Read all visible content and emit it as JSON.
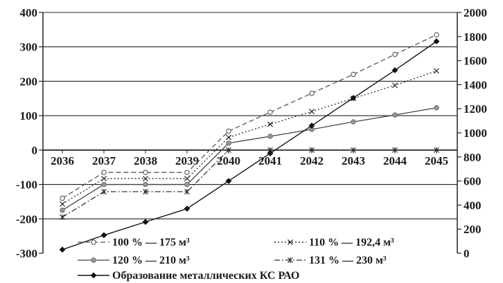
{
  "chart_data": {
    "type": "line",
    "categories": [
      "2036",
      "2037",
      "2038",
      "2039",
      "2040",
      "2041",
      "2042",
      "2043",
      "2044",
      "2045"
    ],
    "left_axis": {
      "ticks": [
        "400",
        "300",
        "200",
        "100",
        "0",
        "-100",
        "-200",
        "-300"
      ],
      "range": [
        -300,
        400
      ]
    },
    "right_axis": {
      "ticks": [
        "2000",
        "1800",
        "1600",
        "1400",
        "1200",
        "1000",
        "800",
        "600",
        "400",
        "200",
        "0"
      ],
      "range": [
        0,
        2000
      ]
    },
    "grid": "horizontal",
    "legend_position": "bottom",
    "series": [
      {
        "name": "100 % — 175 м³",
        "axis": "left",
        "style": "dashed",
        "marker": "open-circle",
        "values": [
          -140,
          -65,
          -65,
          -65,
          55,
          110,
          165,
          220,
          278,
          335
        ]
      },
      {
        "name": "110 % — 192,4 м³",
        "axis": "left",
        "style": "dotted",
        "marker": "x",
        "values": [
          -157,
          -83,
          -83,
          -83,
          37,
          75,
          112,
          150,
          188,
          230
        ]
      },
      {
        "name": "120 % — 210 м³",
        "axis": "left",
        "style": "solid",
        "marker": "filled-circle-gray",
        "values": [
          -175,
          -100,
          -100,
          -100,
          20,
          40,
          60,
          82,
          102,
          123
        ]
      },
      {
        "name": "131 % — 230 м³",
        "axis": "left",
        "style": "dashdot",
        "marker": "asterisk",
        "values": [
          -195,
          -121,
          -121,
          -121,
          0,
          0,
          0,
          0,
          0,
          0
        ]
      },
      {
        "name": "Образование металлических КС РАО",
        "axis": "right",
        "style": "solid",
        "marker": "filled-diamond",
        "values": [
          30,
          150,
          260,
          370,
          600,
          830,
          1060,
          1290,
          1520,
          1760
        ]
      }
    ]
  }
}
